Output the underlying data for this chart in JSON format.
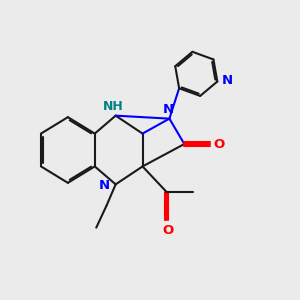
{
  "bg_color": "#ebebeb",
  "bond_color": "#1a1a1a",
  "N_color": "#0000ff",
  "NH_color": "#008080",
  "O_color": "#ff0000",
  "lw": 1.5,
  "dbo": 0.055,
  "fs": 9.5,
  "fig_bg": "#ebebeb",
  "xlim": [
    0,
    10
  ],
  "ylim": [
    0,
    10
  ]
}
